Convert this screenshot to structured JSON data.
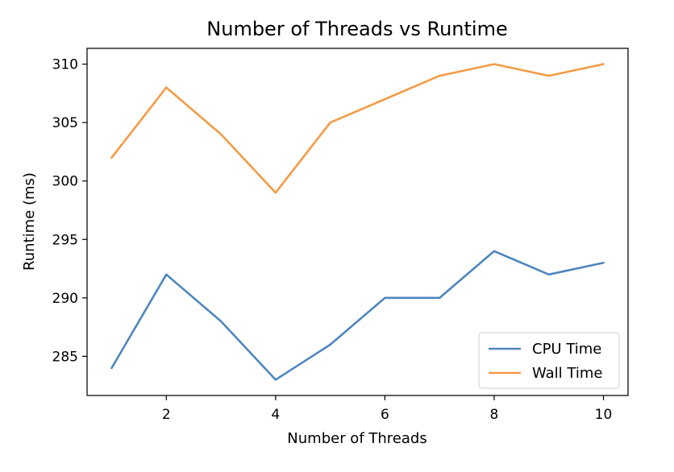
{
  "chart_data": {
    "type": "line",
    "title": "Number of Threads vs Runtime",
    "xlabel": "Number of Threads",
    "ylabel": "Runtime (ms)",
    "x": [
      1,
      2,
      3,
      4,
      5,
      6,
      7,
      8,
      9,
      10
    ],
    "xlim": [
      0.55,
      10.45
    ],
    "ylim": [
      281.65,
      311.35
    ],
    "xticks": [
      2,
      4,
      6,
      8,
      10
    ],
    "yticks": [
      285,
      290,
      295,
      300,
      305,
      310
    ],
    "grid": false,
    "legend_position": "lower-right",
    "series": [
      {
        "name": "CPU Time",
        "color": "#4f86be",
        "values": [
          284,
          292,
          288,
          283,
          286,
          290,
          290,
          294,
          292,
          293
        ]
      },
      {
        "name": "Wall Time",
        "color": "#f39b45",
        "values": [
          302,
          308,
          304,
          299,
          305,
          307,
          309,
          310,
          309,
          310
        ]
      }
    ]
  }
}
